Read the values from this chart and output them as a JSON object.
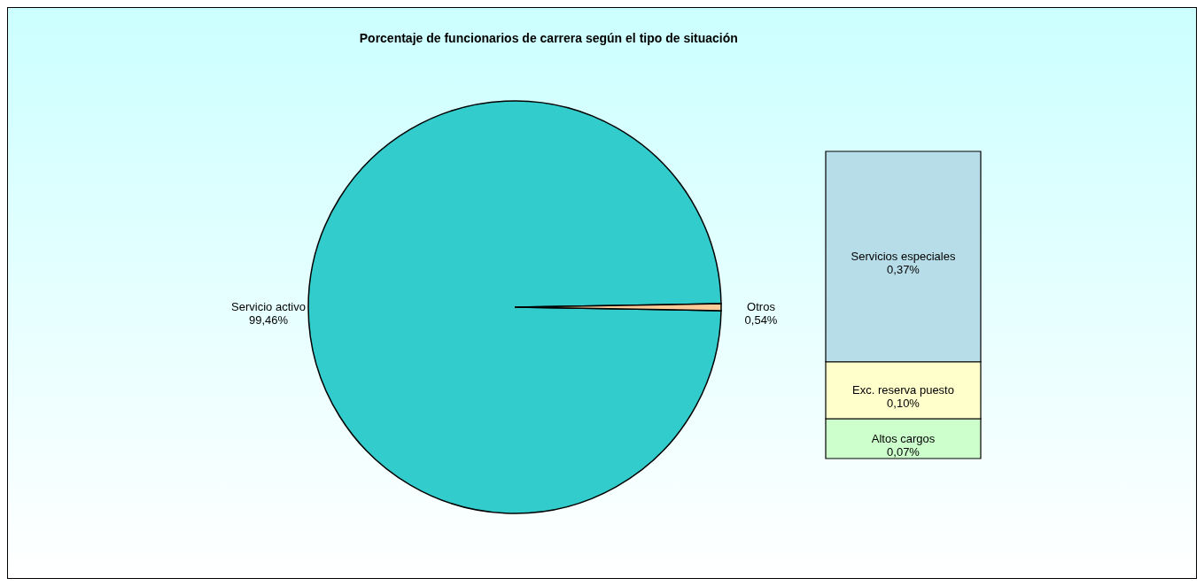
{
  "chart_data": [
    {
      "type": "pie",
      "title": "Porcentaje de funcionarios de carrera según el tipo de situación",
      "categories": [
        "Servicio activo",
        "Otros"
      ],
      "values": [
        99.46,
        0.54
      ],
      "colors": [
        "#33cccc",
        "#ffcc99"
      ],
      "value_labels": [
        "99,46%",
        "0,54%"
      ]
    },
    {
      "type": "bar",
      "stacked": true,
      "categories": [
        null
      ],
      "series": [
        {
          "name": "Altos cargos",
          "color": "#ccffcc",
          "values": [
            0.07
          ],
          "value_labels": [
            "0,07%"
          ]
        },
        {
          "name": "Exc. reserva puesto",
          "color": "#ffffcc",
          "values": [
            0.1
          ],
          "value_labels": [
            "0,10%"
          ]
        },
        {
          "name": "Servicios especiales",
          "color": "#b7dde8",
          "values": [
            0.37
          ],
          "value_labels": [
            "0,37%"
          ]
        }
      ]
    }
  ]
}
